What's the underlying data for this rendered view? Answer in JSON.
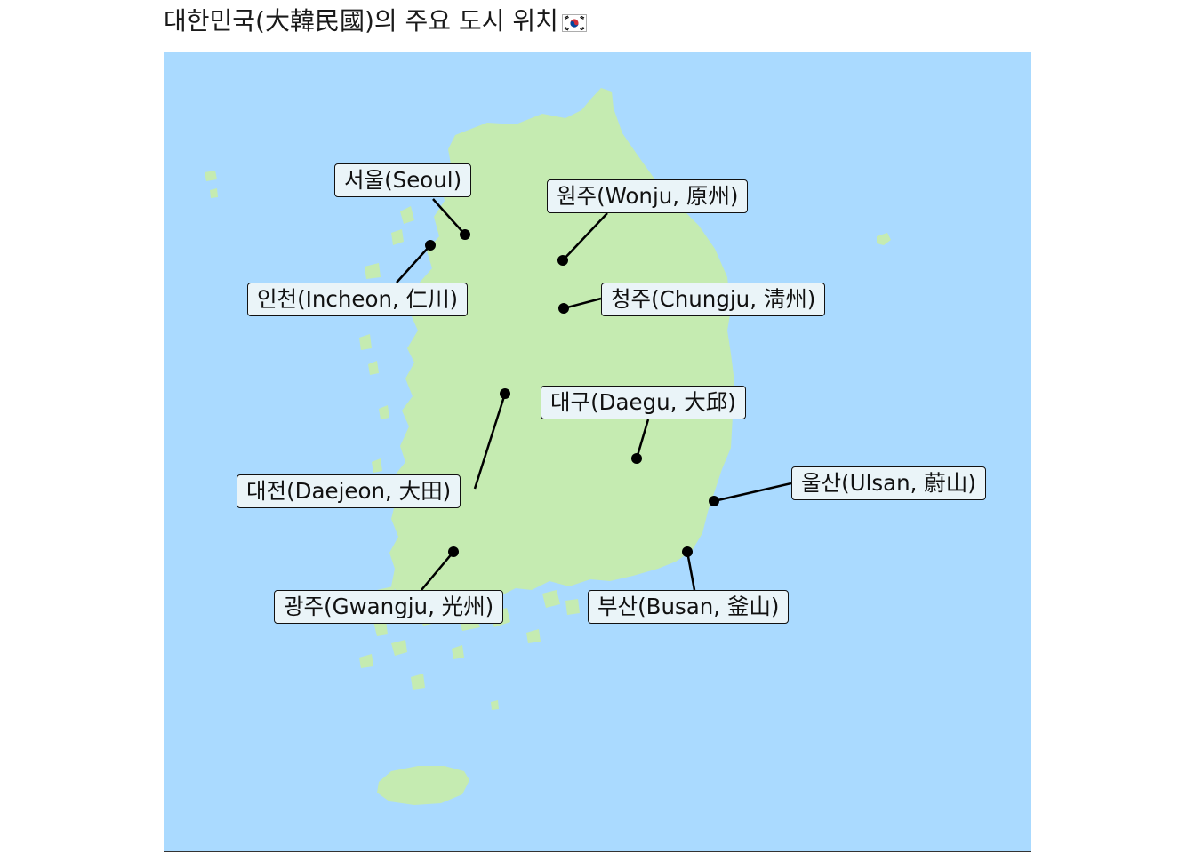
{
  "title": "대한민국(大韓民國)의 주요 도시 위치",
  "flag_icon": "south-korea-flag-icon",
  "colors": {
    "sea": "#aadaff",
    "land": "#c5ebb1",
    "label_bg": "#eaf4f8",
    "point": "#000000"
  },
  "cities": [
    {
      "id": "seoul",
      "label": "서울(Seoul)"
    },
    {
      "id": "wonju",
      "label": "원주(Wonju, 原州)"
    },
    {
      "id": "incheon",
      "label": "인천(Incheon, 仁川)"
    },
    {
      "id": "cheongju",
      "label": "청주(Chungju, 淸州)"
    },
    {
      "id": "daegu",
      "label": "대구(Daegu, 大邱)"
    },
    {
      "id": "daejeon",
      "label": "대전(Daejeon, 大田)"
    },
    {
      "id": "ulsan",
      "label": "울산(Ulsan, 蔚山)"
    },
    {
      "id": "gwangju",
      "label": "광주(Gwangju, 光州)"
    },
    {
      "id": "busan",
      "label": "부산(Busan, 釜山)"
    }
  ]
}
